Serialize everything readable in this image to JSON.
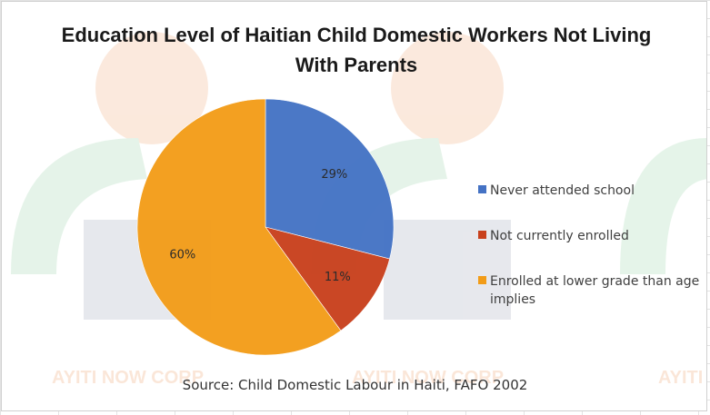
{
  "chart_data": {
    "type": "pie",
    "title": "Education Level of Haitian Child Domestic Workers Not Living With Parents",
    "categories": [
      "Never attended school",
      "Not currently enrolled",
      "Enrolled at lower grade than age implies"
    ],
    "values": [
      29,
      11,
      60
    ],
    "data_labels": [
      "29%",
      "11%",
      "60%"
    ],
    "colors": [
      "#4472C4",
      "#C8401C",
      "#F29C18"
    ],
    "start_angle_deg": 0,
    "direction": "clockwise",
    "legend_position": "right"
  },
  "source": "Source: Child Domestic Labour in Haiti, FAFO 2002",
  "watermark": {
    "text": "AYITI NOW CORP",
    "colors": [
      "#c6e6cf",
      "#f7cfb3",
      "#c9cdd8"
    ]
  }
}
